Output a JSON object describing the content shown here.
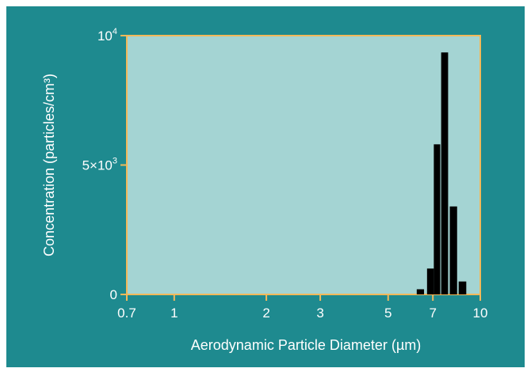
{
  "chart_data": {
    "type": "bar",
    "title": "",
    "xlabel": "Aerodynamic Particle Diameter (µm)",
    "ylabel": "Concentration (particles/cm³)",
    "x_scale": "log",
    "xlim": [
      0.7,
      10
    ],
    "ylim": [
      0,
      10000
    ],
    "x_ticks": [
      {
        "value": 0.7,
        "label": "0.7"
      },
      {
        "value": 1,
        "label": "1"
      },
      {
        "value": 2,
        "label": "2"
      },
      {
        "value": 3,
        "label": "3"
      },
      {
        "value": 5,
        "label": "5"
      },
      {
        "value": 7,
        "label": "7"
      },
      {
        "value": 10,
        "label": "10"
      }
    ],
    "y_ticks": [
      {
        "value": 0,
        "label": "0",
        "sup": ""
      },
      {
        "value": 5000,
        "label": "5×10",
        "sup": "3"
      },
      {
        "value": 10000,
        "label": "10",
        "sup": "4"
      }
    ],
    "bins": [
      {
        "x0": 6.2,
        "x1": 6.55,
        "value": 200
      },
      {
        "x0": 6.7,
        "x1": 7.05,
        "value": 1000
      },
      {
        "x0": 7.05,
        "x1": 7.4,
        "value": 5800
      },
      {
        "x0": 7.45,
        "x1": 7.85,
        "value": 9350
      },
      {
        "x0": 7.95,
        "x1": 8.4,
        "value": 3400
      },
      {
        "x0": 8.5,
        "x1": 9.0,
        "value": 500
      }
    ],
    "grid": false,
    "colors": {
      "background": "#1e8a8f",
      "plot_area": "#a4d4d3",
      "axis": "#f3b95a",
      "bars": "#000000",
      "text": "#ffffff"
    }
  }
}
